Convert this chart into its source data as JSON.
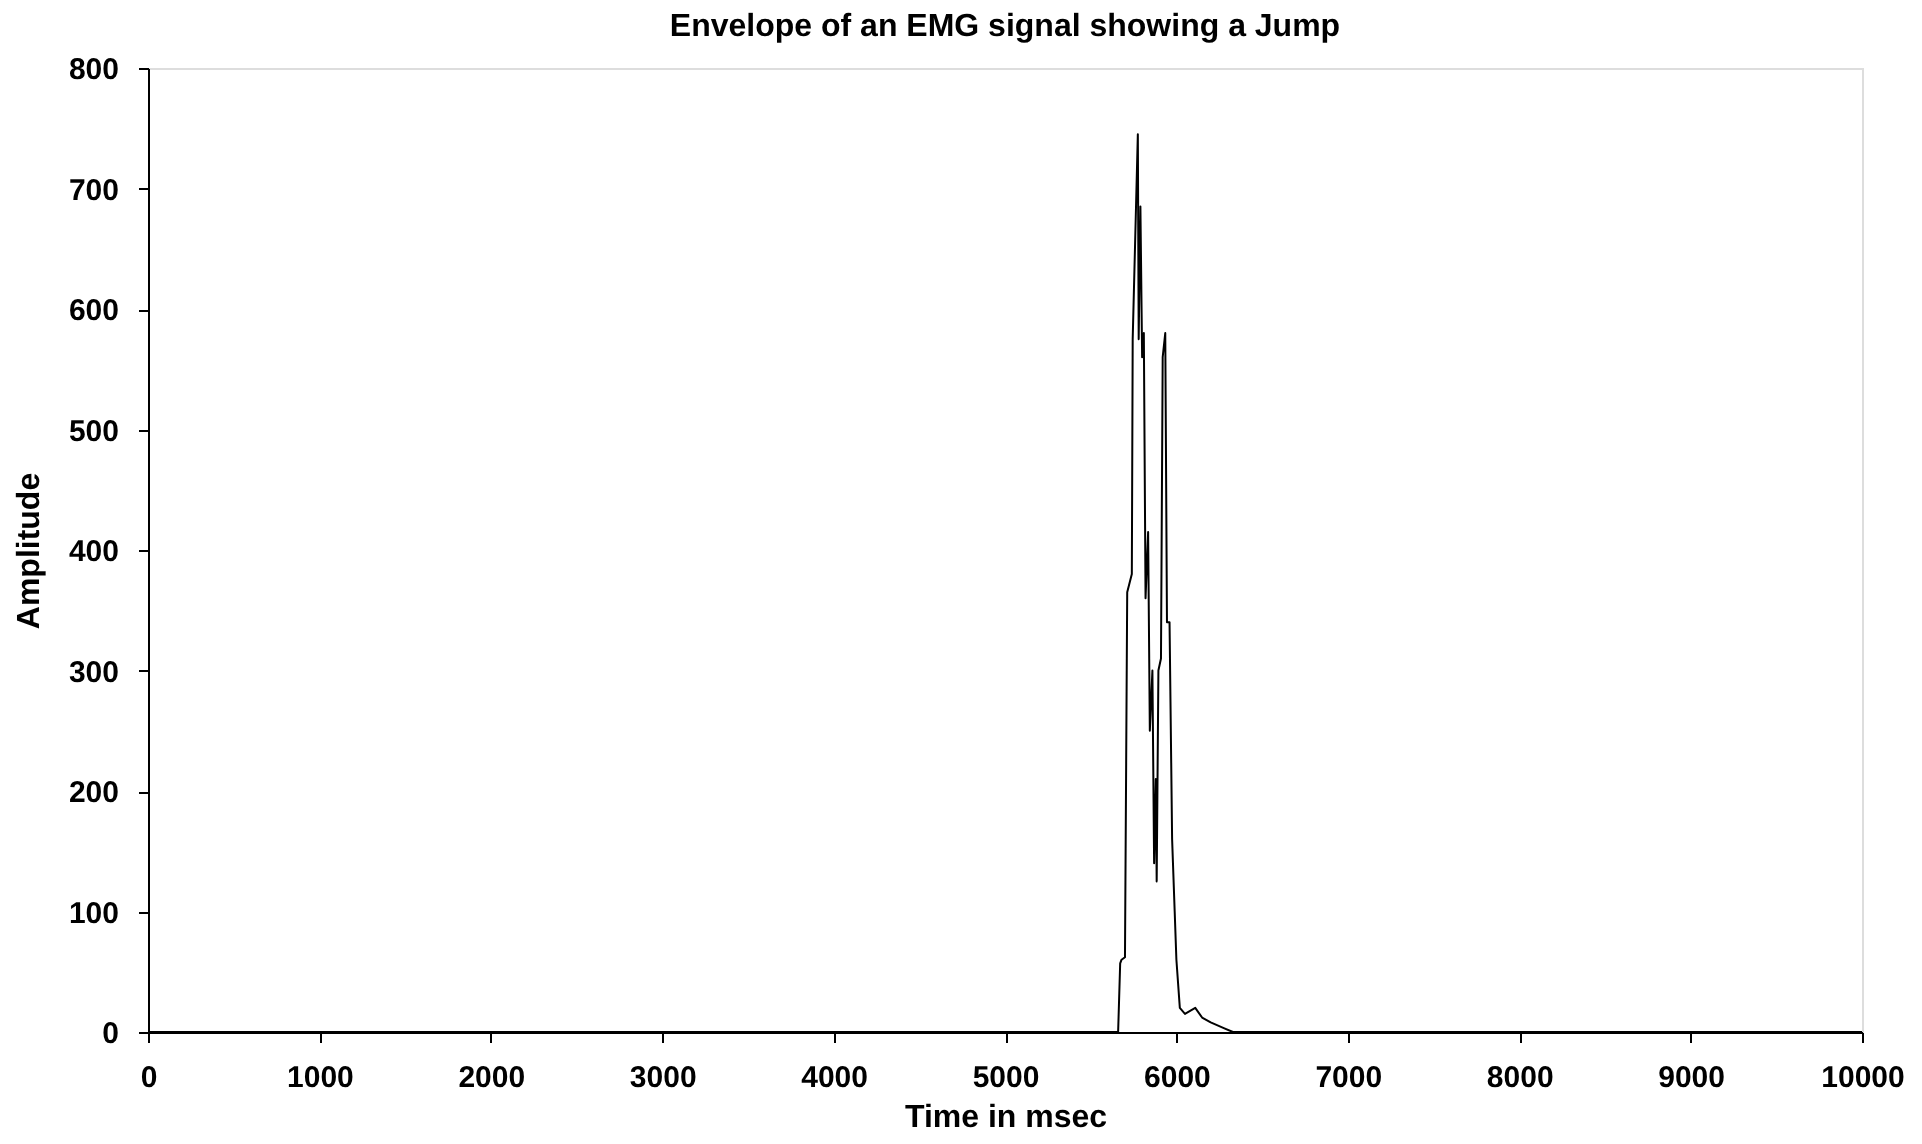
{
  "chart_data": {
    "type": "line",
    "title": "Envelope of an EMG signal showing a Jump",
    "xlabel": "Time in msec",
    "ylabel": "Amplitude",
    "series": [
      {
        "color": "#000000",
        "x": [
          0,
          5660,
          5672,
          5680,
          5700,
          5713,
          5740,
          5745,
          5760,
          5775,
          5780,
          5790,
          5800,
          5810,
          5820,
          5835,
          5845,
          5860,
          5870,
          5880,
          5885,
          5895,
          5910,
          5920,
          5935,
          5945,
          5960,
          5975,
          5990,
          6000,
          6020,
          6050,
          6110,
          6150,
          6200,
          6280,
          6330,
          10000
        ],
        "values": [
          0,
          0,
          57,
          60,
          62,
          365,
          380,
          575,
          660,
          745,
          575,
          685,
          560,
          580,
          360,
          415,
          250,
          300,
          140,
          210,
          125,
          300,
          310,
          560,
          580,
          340,
          340,
          160,
          100,
          60,
          20,
          15,
          20,
          12,
          8,
          3,
          0,
          0
        ]
      }
    ],
    "xlim": [
      0,
      10000
    ],
    "xticks": [
      0,
      1000,
      2000,
      3000,
      4000,
      5000,
      6000,
      7000,
      8000,
      9000,
      10000
    ],
    "ylim": [
      0,
      800
    ],
    "yticks": [
      0,
      100,
      200,
      300,
      400,
      500,
      600,
      700,
      800
    ],
    "grid": false,
    "marker": "none",
    "line_style": "solid"
  }
}
